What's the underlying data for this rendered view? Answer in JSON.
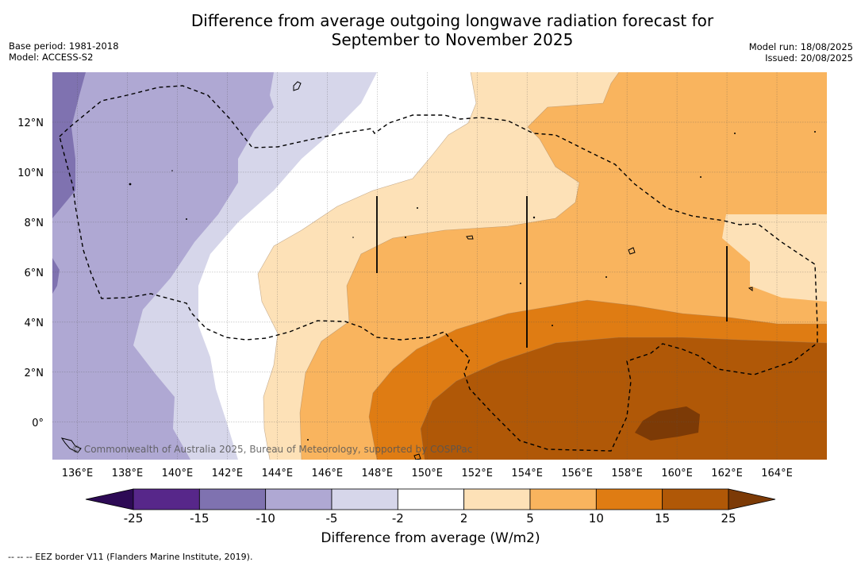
{
  "title_line1": "Difference from average outgoing longwave radiation forecast for",
  "title_line2": "September to November 2025",
  "meta_left": {
    "base_period": "Base period: 1981-2018",
    "model": "Model: ACCESS-S2"
  },
  "meta_right": {
    "model_run": "Model run: 18/08/2025",
    "issued": "Issued: 20/08/2025"
  },
  "copyright": "© Commonwealth of Australia 2025, Bureau of Meteorology, supported by COSPPac",
  "footnote": "--  --  -- EEZ border V11 (Flanders Marine Institute, 2019).",
  "axes": {
    "x_ticks": [
      "136°E",
      "138°E",
      "140°E",
      "142°E",
      "144°E",
      "146°E",
      "148°E",
      "150°E",
      "152°E",
      "154°E",
      "156°E",
      "158°E",
      "160°E",
      "162°E",
      "164°E"
    ],
    "y_ticks": [
      "12°N",
      "10°N",
      "8°N",
      "6°N",
      "4°N",
      "2°N",
      "0°"
    ]
  },
  "colorbar": {
    "title": "Difference from average (W/m2)",
    "ticks": [
      "-25",
      "-15",
      "-10",
      "-5",
      "-2",
      "2",
      "5",
      "10",
      "15",
      "25"
    ],
    "colors": [
      "#2d0a55",
      "#57278a",
      "#7f72b0",
      "#afa8d3",
      "#d6d6ea",
      "#ffffff",
      "#fde1b7",
      "#f9b45e",
      "#df7c13",
      "#b05807",
      "#7c3a06"
    ],
    "extend": "both"
  },
  "map_legend": {
    "contour_colors_low_to_high": [
      "#7f72b0",
      "#afa8d3",
      "#d6d6ea",
      "#ffffff",
      "#fde1b7",
      "#f9b45e",
      "#df7c13",
      "#b05807",
      "#7c3a06"
    ]
  }
}
